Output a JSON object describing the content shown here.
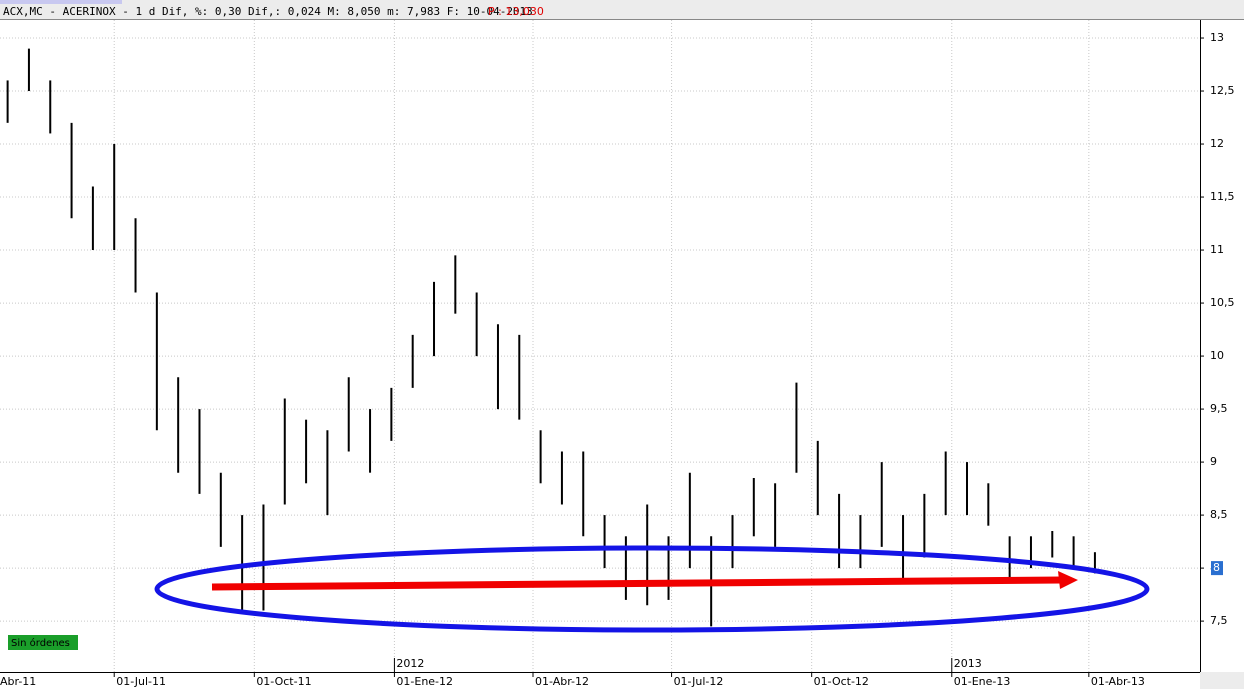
{
  "chart_data": {
    "type": "ohlc",
    "header": "ACX,MC - ACERINOX -  1 d Dif, %: 0,30 Dif,: 0,024 M: 8,050 m: 7,983 F: 10-04-2013",
    "header_price": "P : 13,030",
    "status": "Sin órdenes",
    "last_price": 8,
    "color": "#000000",
    "grid": true,
    "x": [
      "2011-04-22",
      "2011-05-06",
      "2011-05-20",
      "2011-06-03",
      "2011-06-17",
      "2011-07-01",
      "2011-07-15",
      "2011-07-29",
      "2011-08-12",
      "2011-08-26",
      "2011-09-09",
      "2011-09-23",
      "2011-10-07",
      "2011-10-21",
      "2011-11-04",
      "2011-11-18",
      "2011-12-02",
      "2011-12-16",
      "2011-12-30",
      "2012-01-13",
      "2012-01-27",
      "2012-02-10",
      "2012-02-24",
      "2012-03-09",
      "2012-03-23",
      "2012-04-06",
      "2012-04-20",
      "2012-05-04",
      "2012-05-18",
      "2012-06-01",
      "2012-06-15",
      "2012-06-29",
      "2012-07-13",
      "2012-07-27",
      "2012-08-10",
      "2012-08-24",
      "2012-09-07",
      "2012-09-21",
      "2012-10-05",
      "2012-10-19",
      "2012-11-02",
      "2012-11-16",
      "2012-11-30",
      "2012-12-14",
      "2012-12-28",
      "2013-01-11",
      "2013-01-25",
      "2013-02-08",
      "2013-02-22",
      "2013-03-08",
      "2013-03-22",
      "2013-04-05"
    ],
    "highs": [
      12.6,
      12.9,
      12.6,
      12.2,
      11.6,
      12.0,
      11.3,
      10.6,
      9.8,
      9.5,
      8.9,
      8.5,
      8.6,
      9.6,
      9.4,
      9.3,
      9.8,
      9.5,
      9.7,
      10.2,
      10.7,
      10.95,
      10.6,
      10.3,
      10.2,
      9.3,
      9.1,
      9.1,
      8.5,
      8.3,
      8.6,
      8.3,
      8.9,
      8.3,
      8.5,
      8.85,
      8.8,
      9.75,
      9.2,
      8.7,
      8.5,
      9.0,
      8.5,
      8.7,
      9.1,
      9.0,
      8.8,
      8.3,
      8.3,
      8.35,
      8.3,
      8.15
    ],
    "lows": [
      12.2,
      12.5,
      12.1,
      11.3,
      11.0,
      11.0,
      10.6,
      9.3,
      8.9,
      8.7,
      8.2,
      7.6,
      7.6,
      8.6,
      8.8,
      8.5,
      9.1,
      8.9,
      9.2,
      9.7,
      10.0,
      10.4,
      10.0,
      9.5,
      9.4,
      8.8,
      8.6,
      8.3,
      8.0,
      7.7,
      7.65,
      7.7,
      8.0,
      7.45,
      8.0,
      8.3,
      8.2,
      8.9,
      8.5,
      8.0,
      8.0,
      8.2,
      7.9,
      8.1,
      8.5,
      8.5,
      8.4,
      7.9,
      8.0,
      8.1,
      8.0,
      7.95
    ],
    "xlim": [
      "2011-04-17",
      "2013-06-13"
    ],
    "xticks": [
      {
        "value": "2011-04-01",
        "label": "Abr-11"
      },
      {
        "value": "2011-07-01",
        "label": "01-Jul-11"
      },
      {
        "value": "2011-10-01",
        "label": "01-Oct-11"
      },
      {
        "value": "2012-01-01",
        "label": "01-Ene-12"
      },
      {
        "value": "2012-04-01",
        "label": "01-Abr-12"
      },
      {
        "value": "2012-07-01",
        "label": "01-Jul-12"
      },
      {
        "value": "2012-10-01",
        "label": "01-Oct-12"
      },
      {
        "value": "2013-01-01",
        "label": "01-Ene-13"
      },
      {
        "value": "2013-04-01",
        "label": "01-Abr-13"
      }
    ],
    "year_labels": [
      {
        "value": "2012-01-01",
        "label": "2012"
      },
      {
        "value": "2013-01-01",
        "label": "2013"
      }
    ],
    "ylim": [
      7.02,
      13.17
    ],
    "yticks": [
      {
        "value": 7.5,
        "label": "7,5"
      },
      8,
      {
        "value": 8.5,
        "label": "8,5"
      },
      9,
      {
        "value": 9.5,
        "label": "9,5"
      },
      10,
      {
        "value": 10.5,
        "label": "10,5"
      },
      11,
      {
        "value": 11.5,
        "label": "11,5"
      },
      12,
      {
        "value": 12.5,
        "label": "12,5"
      },
      13
    ]
  }
}
